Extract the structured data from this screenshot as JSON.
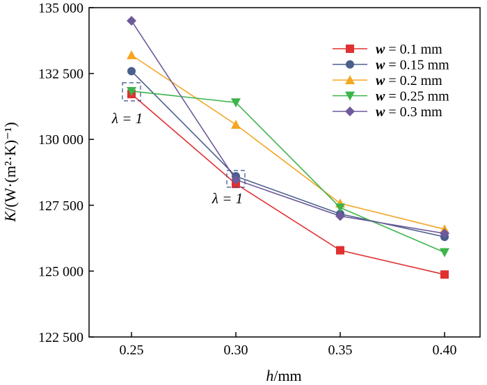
{
  "chart_data": {
    "type": "line",
    "title": "",
    "xlabel_italic": "h",
    "xlabel_unit": "/mm",
    "ylabel_italic": "K",
    "ylabel_unit": "/(W·(m²·K)⁻¹)",
    "x": [
      0.25,
      0.3,
      0.35,
      0.4
    ],
    "x_tick_labels": [
      "0.25",
      "0.30",
      "0.35",
      "0.40"
    ],
    "ylim": [
      122500,
      135000
    ],
    "y_ticks": [
      122500,
      125000,
      127500,
      130000,
      132500,
      135000
    ],
    "y_tick_labels": [
      "122 500",
      "125 000",
      "127 500",
      "130 000",
      "132 500",
      "135 000"
    ],
    "grid": false,
    "legend_placement": "top-right",
    "series": [
      {
        "name": "w = 0.1 mm",
        "var": "w",
        "label": " = 0.1 mm",
        "color": "#e03030",
        "marker": "square",
        "values": [
          131720,
          128310,
          125790,
          124870
        ]
      },
      {
        "name": "w = 0.15 mm",
        "var": "w",
        "label": " = 0.15 mm",
        "color": "#4a5f8c",
        "marker": "circle",
        "values": [
          132590,
          128600,
          127170,
          126300
        ]
      },
      {
        "name": "w = 0.2 mm",
        "var": "w",
        "label": " = 0.2 mm",
        "color": "#f5a623",
        "marker": "triangle-up",
        "values": [
          133200,
          130560,
          127570,
          126590
        ]
      },
      {
        "name": "w = 0.25 mm",
        "var": "w",
        "label": " = 0.25 mm",
        "color": "#3cb44b",
        "marker": "triangle-down",
        "values": [
          131830,
          131400,
          127410,
          125710
        ]
      },
      {
        "name": "w = 0.3 mm",
        "var": "w",
        "label": " = 0.3 mm",
        "color": "#6e5a9a",
        "marker": "diamond",
        "values": [
          134500,
          128470,
          127090,
          126430
        ]
      }
    ],
    "annotations": [
      {
        "text": "λ = 1",
        "x": 0.25,
        "y": 131780
      },
      {
        "text": "λ = 1",
        "x": 0.3,
        "y": 128450
      }
    ]
  }
}
